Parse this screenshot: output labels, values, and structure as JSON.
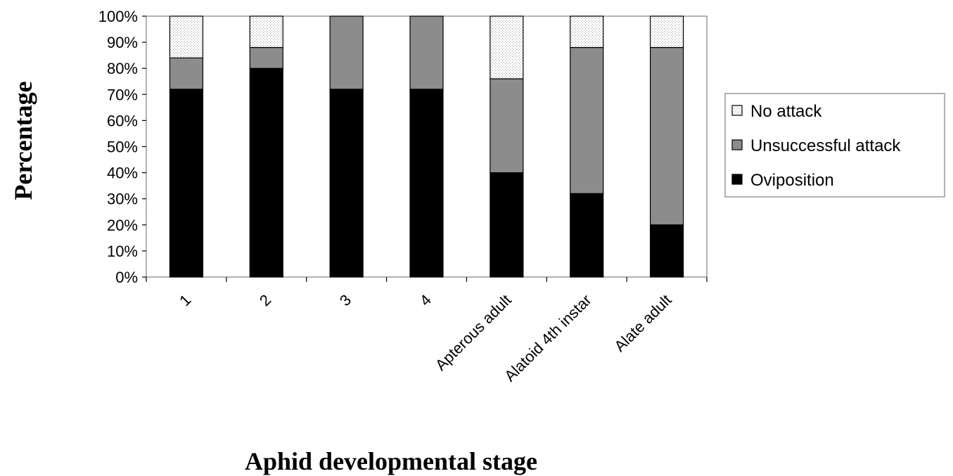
{
  "chart_data": {
    "type": "bar",
    "stacked": true,
    "percent_stacked": true,
    "categories": [
      "1",
      "2",
      "3",
      "4",
      "Apterous adult",
      "Alatoid 4th instar",
      "Alate adult"
    ],
    "series": [
      {
        "name": "Oviposition",
        "values": [
          72,
          80,
          72,
          72,
          40,
          32,
          20
        ],
        "color": "#000000"
      },
      {
        "name": "Unsuccessful attack",
        "values": [
          12,
          8,
          28,
          28,
          36,
          56,
          68
        ],
        "color": "#8c8c8c"
      },
      {
        "name": "No attack",
        "values": [
          16,
          12,
          0,
          0,
          24,
          12,
          12
        ],
        "color": "#f0f0f0"
      }
    ],
    "legend_order": [
      "No attack",
      "Unsuccessful attack",
      "Oviposition"
    ],
    "y_ticks": [
      "0%",
      "10%",
      "20%",
      "30%",
      "40%",
      "50%",
      "60%",
      "70%",
      "80%",
      "90%",
      "100%"
    ],
    "ylim": [
      0,
      100
    ],
    "xlabel": "Aphid developmental stage",
    "ylabel": "Percentage",
    "legend_position": "right",
    "grid": false
  }
}
